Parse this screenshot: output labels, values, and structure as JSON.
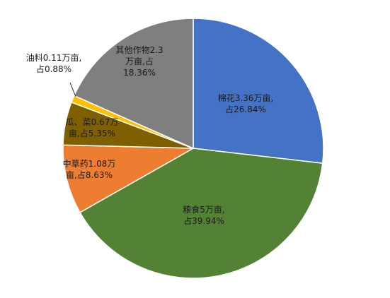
{
  "chart_data": {
    "type": "pie",
    "start_angle_deg": 0,
    "direction": "clockwise",
    "slices": [
      {
        "name": "棉花",
        "value": 26.84,
        "label_lines": [
          "棉花3.36万亩,",
          "占26.84%"
        ],
        "color": "#4472C4"
      },
      {
        "name": "粮食",
        "value": 39.94,
        "label_lines": [
          "粮食5万亩,",
          "占39.94%"
        ],
        "color": "#548235"
      },
      {
        "name": "中草药",
        "value": 8.63,
        "label_lines": [
          "中草药1.08万",
          "亩,占8.63%"
        ],
        "color": "#ED7D31"
      },
      {
        "name": "瓜、菜",
        "value": 5.35,
        "label_lines": [
          "瓜、菜0.67万",
          "亩,占5.35%"
        ],
        "color": "#7F6000"
      },
      {
        "name": "油料",
        "value": 0.88,
        "label_lines": [
          "油料0.11万亩,",
          "占0.88%"
        ],
        "color": "#FFC000"
      },
      {
        "name": "其他作物",
        "value": 18.36,
        "label_lines": [
          "其他作物2.3",
          "万亩,占",
          "18.36%"
        ],
        "color": "#7F7F7F"
      }
    ]
  }
}
